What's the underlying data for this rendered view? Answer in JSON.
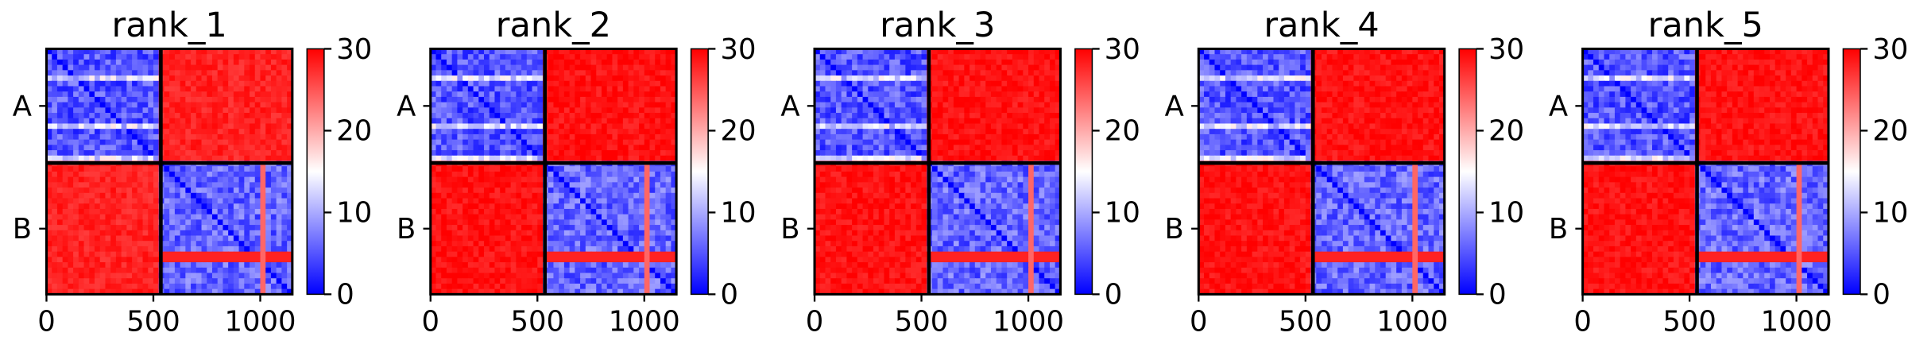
{
  "chart_data": [
    {
      "type": "heatmap",
      "title": "rank_1",
      "xticks": [
        0,
        500,
        1000
      ],
      "xlim": [
        0,
        1150
      ],
      "ylim": [
        0,
        1150
      ],
      "chains": [
        {
          "label": "A",
          "start": 0,
          "end": 535
        },
        {
          "label": "B",
          "start": 535,
          "end": 1150
        }
      ],
      "colorbar": {
        "min": 0,
        "max": 30,
        "ticks": [
          0,
          10,
          20,
          30
        ],
        "colormap": "bwr"
      },
      "block_values": {
        "intra_A": 5,
        "inter": 28,
        "intra_B": 6
      }
    },
    {
      "type": "heatmap",
      "title": "rank_2",
      "xticks": [
        0,
        500,
        1000
      ],
      "xlim": [
        0,
        1150
      ],
      "ylim": [
        0,
        1150
      ],
      "chains": [
        {
          "label": "A",
          "start": 0,
          "end": 535
        },
        {
          "label": "B",
          "start": 535,
          "end": 1150
        }
      ],
      "colorbar": {
        "min": 0,
        "max": 30,
        "ticks": [
          0,
          10,
          20,
          30
        ],
        "colormap": "bwr"
      },
      "block_values": {
        "intra_A": 5,
        "inter": 29,
        "intra_B": 6
      }
    },
    {
      "type": "heatmap",
      "title": "rank_3",
      "xticks": [
        0,
        500,
        1000
      ],
      "xlim": [
        0,
        1150
      ],
      "ylim": [
        0,
        1150
      ],
      "chains": [
        {
          "label": "A",
          "start": 0,
          "end": 535
        },
        {
          "label": "B",
          "start": 535,
          "end": 1150
        }
      ],
      "colorbar": {
        "min": 0,
        "max": 30,
        "ticks": [
          0,
          10,
          20,
          30
        ],
        "colormap": "bwr"
      },
      "block_values": {
        "intra_A": 5,
        "inter": 29,
        "intra_B": 6
      }
    },
    {
      "type": "heatmap",
      "title": "rank_4",
      "xticks": [
        0,
        500,
        1000
      ],
      "xlim": [
        0,
        1150
      ],
      "ylim": [
        0,
        1150
      ],
      "chains": [
        {
          "label": "A",
          "start": 0,
          "end": 535
        },
        {
          "label": "B",
          "start": 535,
          "end": 1150
        }
      ],
      "colorbar": {
        "min": 0,
        "max": 30,
        "ticks": [
          0,
          10,
          20,
          30
        ],
        "colormap": "bwr"
      },
      "block_values": {
        "intra_A": 5,
        "inter": 29,
        "intra_B": 6
      }
    },
    {
      "type": "heatmap",
      "title": "rank_5",
      "xticks": [
        0,
        500,
        1000
      ],
      "xlim": [
        0,
        1150
      ],
      "ylim": [
        0,
        1150
      ],
      "chains": [
        {
          "label": "A",
          "start": 0,
          "end": 535
        },
        {
          "label": "B",
          "start": 535,
          "end": 1150
        }
      ],
      "colorbar": {
        "min": 0,
        "max": 30,
        "ticks": [
          0,
          10,
          20,
          30
        ],
        "colormap": "bwr"
      },
      "block_values": {
        "intra_A": 5,
        "inter": 29,
        "intra_B": 6
      }
    }
  ]
}
